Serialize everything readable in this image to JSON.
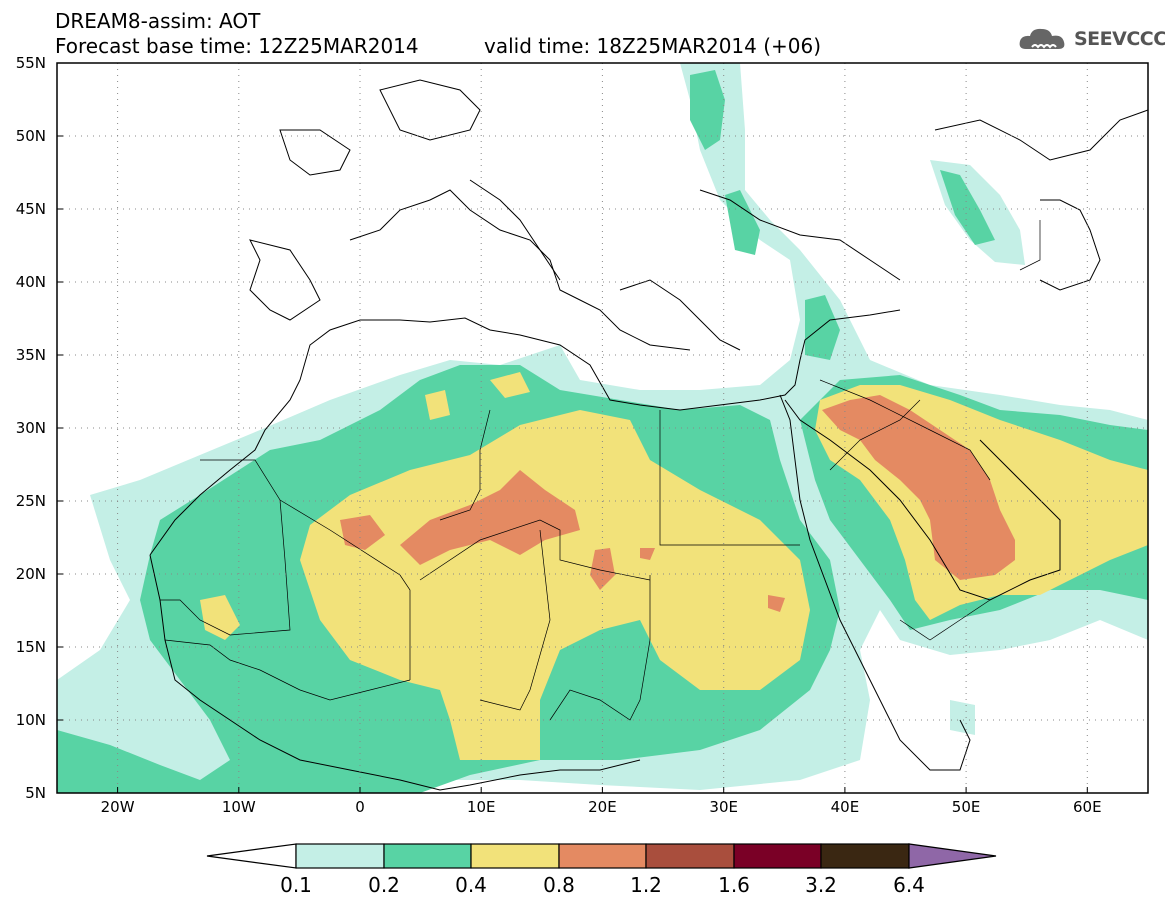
{
  "header": {
    "line1": "DREAM8-assim: AOT",
    "line2": "Forecast base time: 12Z25MAR2014",
    "line3": "valid time: 18Z25MAR2014 (+06)"
  },
  "logo": {
    "text": "SEEVCCC",
    "icon": "cloud-logo-icon"
  },
  "map": {
    "lon_range": [
      -25,
      65
    ],
    "lat_range": [
      5,
      55
    ],
    "lon_ticks": [
      "20W",
      "10W",
      "0",
      "10E",
      "20E",
      "30E",
      "40E",
      "50E",
      "60E"
    ],
    "lat_ticks": [
      "55N",
      "50N",
      "45N",
      "40N",
      "35N",
      "30N",
      "25N",
      "20N",
      "15N",
      "10N",
      "5N"
    ],
    "grid": "dotted"
  },
  "legend": {
    "labels": [
      "0.1",
      "0.2",
      "0.4",
      "0.8",
      "1.2",
      "1.6",
      "3.2",
      "6.4"
    ],
    "colors": [
      "#ffffff",
      "#c4efe6",
      "#58d3a4",
      "#f2e27a",
      "#e48a62",
      "#a94e3d",
      "#7a0026",
      "#3a2712",
      "#8f67a7"
    ]
  }
}
